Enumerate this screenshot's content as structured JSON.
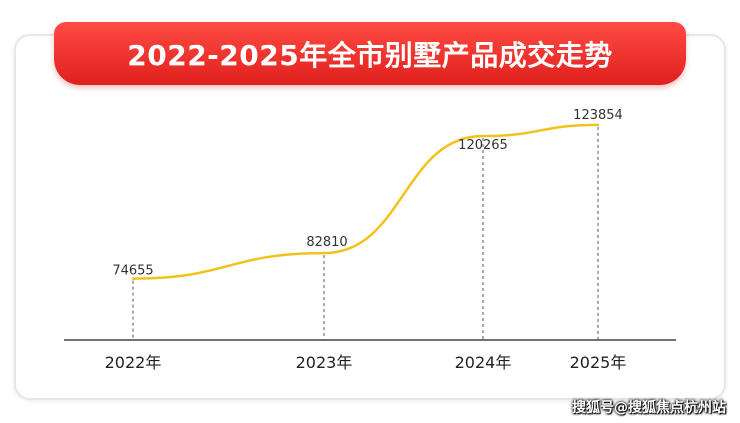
{
  "chart_data": {
    "type": "line",
    "title": "2022-2025年全市别墅产品成交走势",
    "categories": [
      "2022年",
      "2023年",
      "2024年",
      "2025年"
    ],
    "values": [
      74655,
      82810,
      120265,
      123854
    ],
    "data_labels": [
      "74655",
      "82810",
      "120265",
      "123854"
    ],
    "ylim": [
      55000,
      135000
    ],
    "grid": false,
    "legend": "none",
    "line_color": "#f2c21b",
    "axis_color": "#444444",
    "guide_color": "#555555"
  },
  "watermark": "搜狐号@搜狐焦点杭州站",
  "colors": {
    "banner_top": "#ff4b45",
    "banner_bottom": "#e0201c",
    "title_text": "#ffffff"
  }
}
